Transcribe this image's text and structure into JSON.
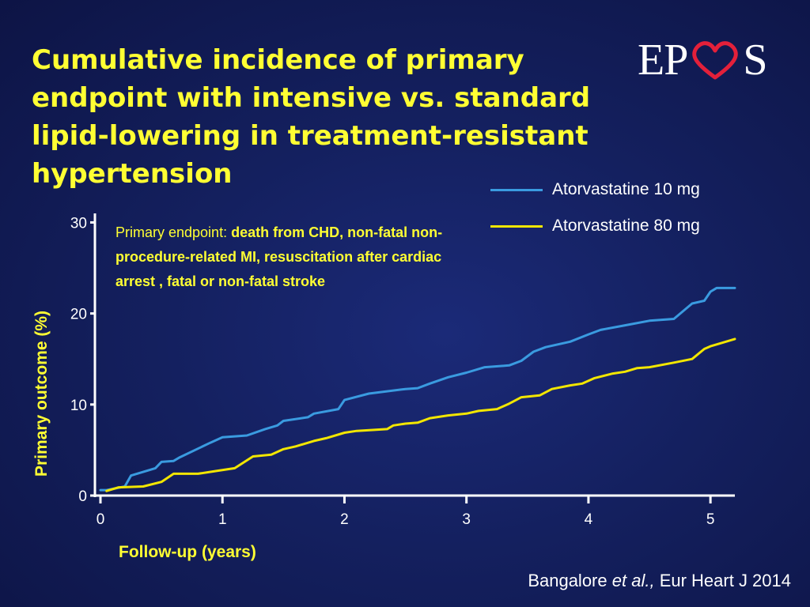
{
  "title_lines": [
    "Cumulative incidence of primary",
    "endpoint with intensive vs. standard",
    "lipid-lowering in treatment-resistant",
    "hypertension"
  ],
  "logo": {
    "left": "EP",
    "right": "S",
    "heart_icon": "heart-icon"
  },
  "note": {
    "label": "Primary endpoint:",
    "text": "death from CHD, non-fatal non-procedure-related MI, resuscitation after cardiac arrest , fatal or non-fatal stroke"
  },
  "citation": {
    "authors": "Bangalore",
    "etal": "et al.,",
    "journal": "Eur Heart J 2014"
  },
  "colors": {
    "accent": "#ffff33",
    "background": "#14205f",
    "series_10mg": "#3a9be0",
    "series_80mg": "#f2e600"
  },
  "chart_data": {
    "type": "line",
    "title": "",
    "xlabel": "Follow-up (years)",
    "ylabel": "Primary outcome (%)",
    "xlim": [
      0,
      5.2
    ],
    "ylim": [
      0,
      30
    ],
    "x_ticks": [
      "0",
      "1",
      "2",
      "3",
      "4",
      "5"
    ],
    "y_ticks": [
      "0",
      "10",
      "20",
      "30"
    ],
    "legend_position": "top-right",
    "grid": false,
    "series": [
      {
        "name": "Atorvastatine 10 mg",
        "color": "#3a9be0",
        "points": [
          [
            0.0,
            0.6
          ],
          [
            0.05,
            0.6
          ],
          [
            0.2,
            1.0
          ],
          [
            0.25,
            2.2
          ],
          [
            0.45,
            3.0
          ],
          [
            0.5,
            3.7
          ],
          [
            0.6,
            3.8
          ],
          [
            0.65,
            4.2
          ],
          [
            0.9,
            5.8
          ],
          [
            1.0,
            6.4
          ],
          [
            1.2,
            6.6
          ],
          [
            1.35,
            7.3
          ],
          [
            1.45,
            7.7
          ],
          [
            1.5,
            8.2
          ],
          [
            1.7,
            8.6
          ],
          [
            1.75,
            9.0
          ],
          [
            1.95,
            9.5
          ],
          [
            2.0,
            10.5
          ],
          [
            2.2,
            11.2
          ],
          [
            2.5,
            11.7
          ],
          [
            2.6,
            11.8
          ],
          [
            2.7,
            12.3
          ],
          [
            2.85,
            13.0
          ],
          [
            3.0,
            13.5
          ],
          [
            3.15,
            14.1
          ],
          [
            3.35,
            14.3
          ],
          [
            3.45,
            14.8
          ],
          [
            3.55,
            15.8
          ],
          [
            3.65,
            16.3
          ],
          [
            3.85,
            16.9
          ],
          [
            4.0,
            17.7
          ],
          [
            4.1,
            18.2
          ],
          [
            4.3,
            18.7
          ],
          [
            4.5,
            19.2
          ],
          [
            4.7,
            19.4
          ],
          [
            4.85,
            21.1
          ],
          [
            4.95,
            21.4
          ],
          [
            5.0,
            22.4
          ],
          [
            5.05,
            22.8
          ],
          [
            5.2,
            22.8
          ]
        ]
      },
      {
        "name": "Atorvastatine 80 mg",
        "color": "#f2e600",
        "points": [
          [
            0.05,
            0.5
          ],
          [
            0.15,
            0.9
          ],
          [
            0.35,
            1.0
          ],
          [
            0.5,
            1.5
          ],
          [
            0.6,
            2.4
          ],
          [
            0.8,
            2.4
          ],
          [
            0.95,
            2.7
          ],
          [
            1.1,
            3.0
          ],
          [
            1.25,
            4.3
          ],
          [
            1.4,
            4.5
          ],
          [
            1.5,
            5.1
          ],
          [
            1.6,
            5.4
          ],
          [
            1.75,
            6.0
          ],
          [
            1.85,
            6.3
          ],
          [
            2.0,
            6.9
          ],
          [
            2.1,
            7.1
          ],
          [
            2.35,
            7.3
          ],
          [
            2.4,
            7.7
          ],
          [
            2.5,
            7.9
          ],
          [
            2.6,
            8.0
          ],
          [
            2.7,
            8.5
          ],
          [
            2.85,
            8.8
          ],
          [
            3.0,
            9.0
          ],
          [
            3.1,
            9.3
          ],
          [
            3.25,
            9.5
          ],
          [
            3.35,
            10.1
          ],
          [
            3.45,
            10.8
          ],
          [
            3.6,
            11.0
          ],
          [
            3.7,
            11.7
          ],
          [
            3.85,
            12.1
          ],
          [
            3.95,
            12.3
          ],
          [
            4.05,
            12.9
          ],
          [
            4.2,
            13.4
          ],
          [
            4.3,
            13.6
          ],
          [
            4.4,
            14.0
          ],
          [
            4.5,
            14.1
          ],
          [
            4.7,
            14.6
          ],
          [
            4.85,
            15.0
          ],
          [
            4.95,
            16.1
          ],
          [
            5.0,
            16.4
          ],
          [
            5.05,
            16.6
          ],
          [
            5.2,
            17.2
          ]
        ]
      }
    ]
  }
}
